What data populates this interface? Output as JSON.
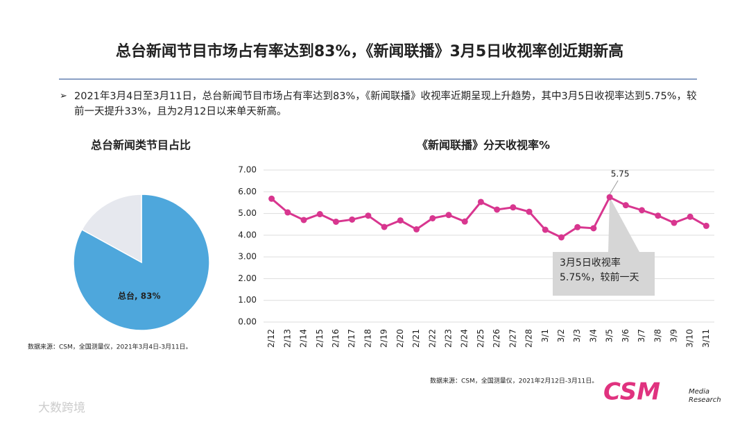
{
  "title": "总台新闻节目市场占有率达到83%，《新闻联播》3月5日收视率创近期新高",
  "bullet": "2021年3月4日至3月11日，总台新闻节目市场占有率达到83%，《新闻联播》收视率近期呈现上升趋势，其中3月5日收视率达到5.75%，较前一天提升33%，且为2月12日以来单天新高。",
  "chart_data": [
    {
      "type": "pie",
      "title": "总台新闻类节目占比",
      "categories": [
        "总台",
        null
      ],
      "values": [
        83,
        17
      ],
      "value_labels": [
        "总台, 83%",
        null
      ],
      "colors": [
        "#4ea7dc",
        "#e6e8ee"
      ],
      "source": "数据来源：CSM，全国测量仪，2021年3月4日-3月11日。"
    },
    {
      "type": "line",
      "title": "《新闻联播》分天收视率%",
      "categories": [
        "2/12",
        "2/13",
        "2/14",
        "2/15",
        "2/16",
        "2/17",
        "2/18",
        "2/19",
        "2/20",
        "2/21",
        "2/22",
        "2/23",
        "2/24",
        "2/25",
        "2/26",
        "2/27",
        "2/28",
        "3/1",
        "3/2",
        "3/3",
        "3/4",
        "3/5",
        "3/6",
        "3/7",
        "3/8",
        "3/9",
        "3/10",
        "3/11"
      ],
      "values": [
        5.68,
        5.05,
        4.7,
        4.97,
        4.62,
        4.72,
        4.9,
        4.38,
        4.68,
        4.27,
        4.78,
        4.93,
        4.63,
        5.53,
        5.18,
        5.28,
        5.08,
        4.25,
        3.9,
        4.37,
        4.32,
        5.75,
        5.38,
        5.15,
        4.9,
        4.57,
        4.85,
        4.43
      ],
      "value_labels": [
        null,
        null,
        null,
        null,
        null,
        null,
        null,
        null,
        null,
        null,
        null,
        null,
        null,
        null,
        null,
        null,
        null,
        null,
        null,
        null,
        null,
        "5.75",
        null,
        null,
        null,
        null,
        null,
        null
      ],
      "color": "#d8368f",
      "ylim": [
        0,
        7
      ],
      "yticks": [
        {
          "value": 0,
          "label": "0.00"
        },
        {
          "value": 1,
          "label": "1.00"
        },
        {
          "value": 2,
          "label": "2.00"
        },
        {
          "value": 3,
          "label": "3.00"
        },
        {
          "value": 4,
          "label": "4.00"
        },
        {
          "value": 5,
          "label": "5.00"
        },
        {
          "value": 6,
          "label": "6.00"
        },
        {
          "value": 7,
          "label": "7.00"
        }
      ],
      "grid": true,
      "annotation": [
        "3月5日收视率",
        "5.75%，较前一天"
      ],
      "source": "数据来源：CSM，全国测量仪，2021年2月12日-3月11日。"
    }
  ],
  "logo": {
    "brand": "CSM",
    "line1": "Media",
    "line2": "Research"
  },
  "watermark": "大数跨境"
}
